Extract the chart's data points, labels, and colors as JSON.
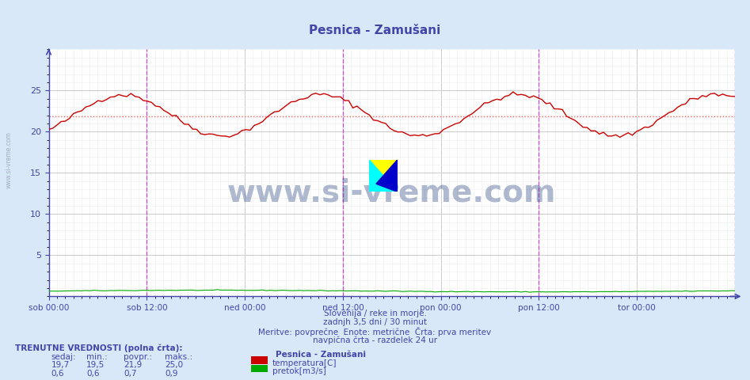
{
  "title_display": "Pesnica - Zamušani",
  "bg_color": "#d8e8f8",
  "plot_bg_color": "#ffffff",
  "grid_color": "#cccccc",
  "grid_color_minor": "#eeeeee",
  "temp_color": "#cc0000",
  "flow_color": "#00aa00",
  "avg_line_color": "#ff6666",
  "vline_color": "#cc44cc",
  "axis_color": "#4444aa",
  "text_color": "#4444aa",
  "ylim": [
    0,
    30
  ],
  "yticks": [
    5,
    10,
    15,
    20,
    25
  ],
  "n_points": 168,
  "temp_avg": 21.9,
  "footer_lines": [
    "Slovenija / reke in morje.",
    "zadnjh 3,5 dni / 30 minut",
    "Meritve: povprečne  Enote: metrične  Črta: prva meritev",
    "navpična črta - razdelek 24 ur"
  ],
  "legend_title": "Pesnica - Zamušani",
  "legend_temp": "temperatura[C]",
  "legend_flow": "pretok[m3/s]",
  "stats_header": "TRENUTNE VREDNOSTI (polna črta):",
  "stats_cols": [
    "sedaj:",
    "min.:",
    "povpr.:",
    "maks.:"
  ],
  "stats_temp": [
    "19,7",
    "19,5",
    "21,9",
    "25,0"
  ],
  "stats_flow": [
    "0,6",
    "0,6",
    "0,7",
    "0,9"
  ],
  "xlabel_ticks": [
    "sob 00:00",
    "sob 12:00",
    "ned 00:00",
    "ned 12:00",
    "pon 00:00",
    "pon 12:00",
    "tor 00:00"
  ],
  "watermark": "www.si-vreme.com"
}
